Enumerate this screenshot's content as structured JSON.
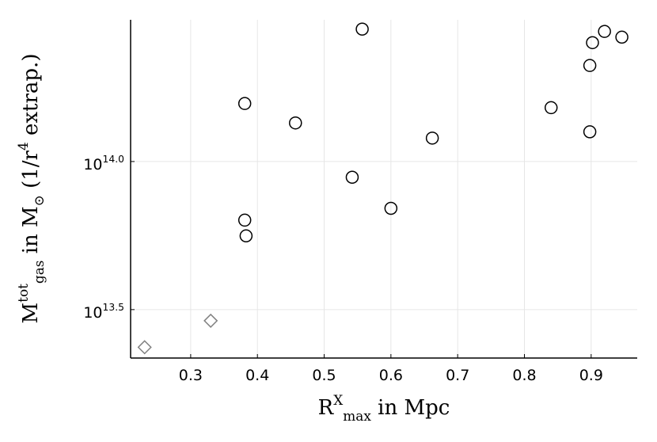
{
  "chart_data": {
    "type": "scatter",
    "xlabel": "R^{X}_{max} in Mpc",
    "ylabel": "M^{tot}_{gas} in M_{⊙} (1/r^{4} extrap.)",
    "series": [
      {
        "marker": "circle",
        "color": "#000000",
        "x": [
          0.557,
          0.381,
          0.457,
          0.662,
          0.542,
          0.6,
          0.381,
          0.383,
          0.84,
          0.898,
          0.898,
          0.902,
          0.92,
          0.946
        ],
        "values": [
          280000000000000.0,
          157000000000000.0,
          135000000000000.0,
          120000000000000.0,
          88500000000000.0,
          69500000000000.0,
          63400000000000.0,
          56100000000000.0,
          152000000000000.0,
          126000000000000.0,
          211000000000000.0,
          252000000000000.0,
          275000000000000.0,
          263000000000000.0
        ]
      },
      {
        "marker": "diamond",
        "color": "#808080",
        "x": [
          0.231,
          0.33
        ],
        "values": [
          23600000000000.0,
          29000000000000.0
        ]
      }
    ],
    "xlim": [
      0.21,
      0.969
    ],
    "xticks": [
      0.3,
      0.4,
      0.5,
      0.6,
      0.7,
      0.8,
      0.9
    ],
    "ylim": [
      21700000000000.0,
      301000000000000.0
    ],
    "ylog": true,
    "yticks": [
      {
        "value": 31622776601683.8,
        "label": "10^{13.5}"
      },
      {
        "value": 100000000000000,
        "label": "10^{14.0}"
      }
    ],
    "grid": true
  }
}
